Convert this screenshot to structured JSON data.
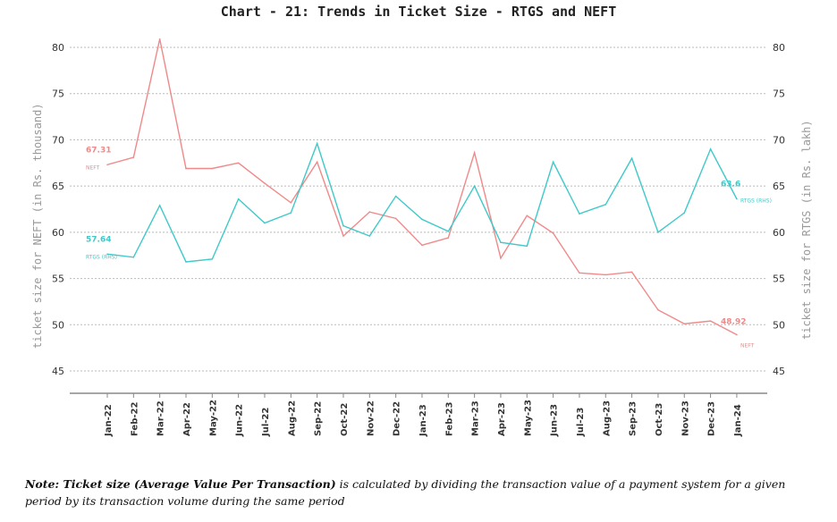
{
  "chart_data": {
    "type": "line",
    "title": "Chart - 21: Trends in Ticket Size - RTGS and NEFT",
    "ylabel_left": "ticket size for NEFT (in Rs. thousand)",
    "ylabel_right": "ticket size for RTGS (in Rs. lakh)",
    "ylim": [
      45,
      80
    ],
    "yticks": [
      45,
      50,
      55,
      60,
      65,
      70,
      75,
      80
    ],
    "grid": true,
    "categories": [
      "Jan-22",
      "Feb-22",
      "Mar-22",
      "Apr-22",
      "May-22",
      "Jun-22",
      "Jul-22",
      "Aug-22",
      "Sep-22",
      "Oct-22",
      "Nov-22",
      "Dec-22",
      "Jan-23",
      "Feb-23",
      "Mar-23",
      "Apr-23",
      "May-23",
      "Jun-23",
      "Jul-23",
      "Aug-23",
      "Sep-23",
      "Oct-23",
      "Nov-23",
      "Dec-23",
      "Jan-24"
    ],
    "series": [
      {
        "name": "NEFT",
        "axis": "left",
        "color": "#f08a8a",
        "values": [
          67.31,
          68.1,
          80.9,
          66.9,
          66.9,
          67.5,
          65.3,
          63.2,
          67.6,
          59.6,
          62.2,
          61.5,
          58.6,
          59.4,
          68.6,
          57.2,
          61.8,
          59.9,
          55.6,
          55.4,
          55.7,
          51.6,
          50.1,
          50.4,
          48.92
        ],
        "start_label": "67.31",
        "end_label": "48.92",
        "tag_start": "NEFT",
        "tag_end": "NEFT"
      },
      {
        "name": "RTGS (RHS)",
        "axis": "right",
        "color": "#3fc9c9",
        "values": [
          57.64,
          57.3,
          62.9,
          56.8,
          57.1,
          63.6,
          61.0,
          62.1,
          69.6,
          60.7,
          59.6,
          63.9,
          61.4,
          60.1,
          65.0,
          58.9,
          58.5,
          67.6,
          62.0,
          63.0,
          68.0,
          60.0,
          62.1,
          69.0,
          63.6
        ],
        "start_label": "57.64",
        "end_label": "63.6",
        "tag_start": "RTGS (RHS)",
        "tag_end": "RTGS (RHS)"
      }
    ]
  },
  "note": {
    "bold": "Note: Ticket size (Average Value Per Transaction)",
    "rest": " is calculated by dividing the transaction value of a payment system for a given period by its transaction volume during the same period"
  }
}
